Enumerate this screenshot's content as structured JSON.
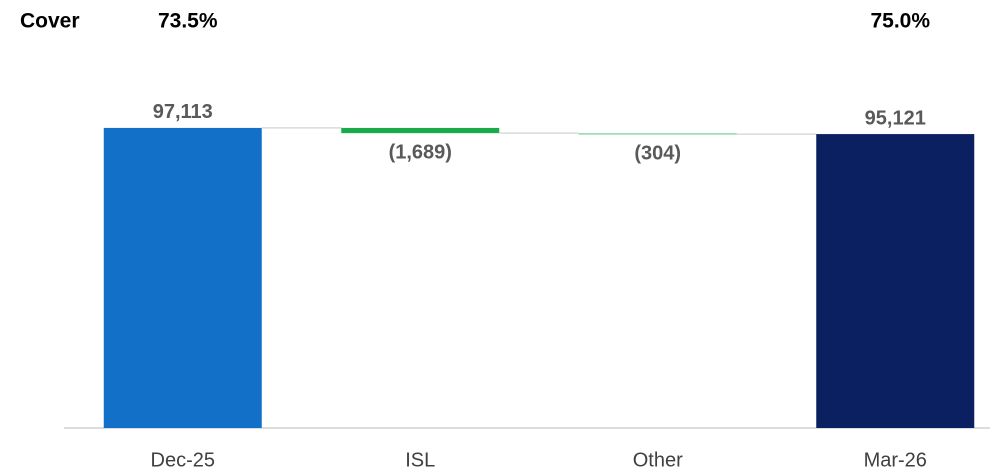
{
  "chart_data": {
    "type": "waterfall",
    "categories": [
      "Dec-25",
      "ISL",
      "Other",
      "Mar-26"
    ],
    "values": [
      97113,
      -1689,
      -304,
      95121
    ],
    "value_labels": [
      "97,113",
      "(1,689)",
      "(304)",
      "95,121"
    ],
    "totals": [
      true,
      false,
      false,
      true
    ],
    "colors": [
      "#1270c8",
      "#1aaa4a",
      "#8fd6ab",
      "#0a2060"
    ],
    "ylim": [
      0,
      100000
    ],
    "cover": {
      "label": "Cover",
      "values": [
        73.5,
        null,
        null,
        75.0
      ],
      "value_labels": [
        "73.5%",
        null,
        null,
        "75.0%"
      ]
    }
  }
}
